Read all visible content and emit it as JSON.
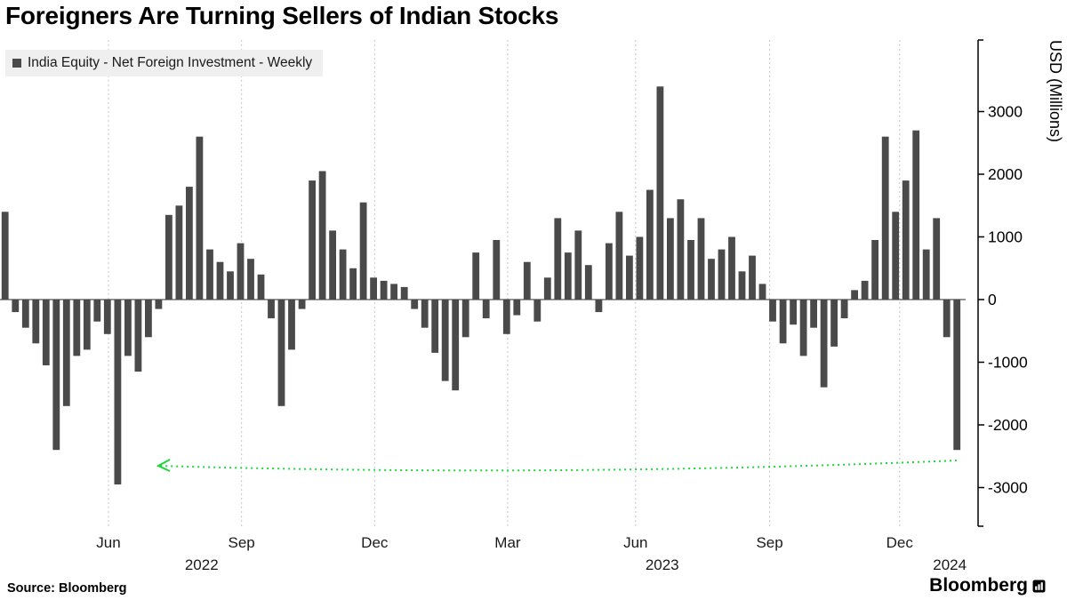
{
  "title": "Foreigners Are Turning Sellers of Indian Stocks",
  "legend": {
    "marker_color": "#4a4a4a",
    "label": "India Equity - Net Foreign Investment - Weekly"
  },
  "footer": {
    "source": "Source: Bloomberg",
    "brand": "Bloomberg"
  },
  "chart_data": {
    "type": "bar",
    "title": "Foreigners Are Turning Sellers of Indian Stocks",
    "series_name": "India Equity - Net Foreign Investment - Weekly",
    "ylabel": "USD (Millions)",
    "period": "weekly",
    "x_range": [
      "Apr 2022",
      "Jan 2024"
    ],
    "ylim": [
      -3600,
      4150
    ],
    "grid": "vertical-dashed",
    "legend_position": "top-left",
    "axis_side": "right",
    "bar_color": "#4a4a4a",
    "y_ticks": [
      3000,
      2000,
      1000,
      0,
      -1000,
      -2000,
      -3000
    ],
    "x_ticks": [
      {
        "label": "Jun",
        "index": 10.1
      },
      {
        "label": "Sep",
        "index": 23.1
      },
      {
        "label": "Dec",
        "index": 36.1
      },
      {
        "label": "Mar",
        "index": 49.1
      },
      {
        "label": "Jun",
        "index": 61.6
      },
      {
        "label": "Sep",
        "index": 74.7
      },
      {
        "label": "Dec",
        "index": 87.4
      }
    ],
    "year_labels": [
      {
        "label": "2022",
        "index": 19.2
      },
      {
        "label": "2023",
        "index": 64.2
      },
      {
        "label": "2024",
        "index": 92.3
      }
    ],
    "values": [
      1400,
      -200,
      -450,
      -700,
      -1050,
      -2400,
      -1700,
      -900,
      -800,
      -350,
      -550,
      -2950,
      -900,
      -1150,
      -600,
      -150,
      1350,
      1500,
      1800,
      2600,
      800,
      600,
      450,
      900,
      650,
      400,
      -300,
      -1700,
      -800,
      -150,
      1900,
      2050,
      1100,
      800,
      500,
      1550,
      350,
      300,
      250,
      200,
      -150,
      -450,
      -850,
      -1300,
      -1450,
      -600,
      750,
      -300,
      950,
      -550,
      -250,
      600,
      -350,
      350,
      1300,
      750,
      1100,
      550,
      -200,
      900,
      1400,
      700,
      1000,
      1750,
      3400,
      1300,
      1600,
      950,
      1300,
      650,
      800,
      1000,
      450,
      700,
      250,
      -350,
      -700,
      -400,
      -900,
      -450,
      -1400,
      -750,
      -300,
      150,
      300,
      950,
      2600,
      1400,
      1900,
      2700,
      800,
      1300,
      -600,
      -2400
    ],
    "annotation_arrow": {
      "color": "#1ed53c",
      "style": "dotted",
      "direction": "left",
      "y_value": -2650,
      "from_index": 93,
      "to_index": 15
    }
  }
}
